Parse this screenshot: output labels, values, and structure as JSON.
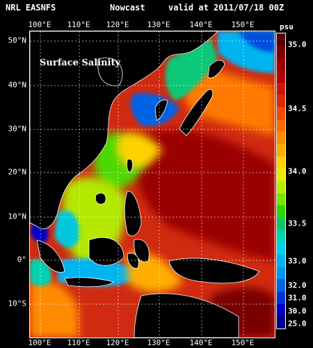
{
  "header": {
    "source": "NRL EASNFS",
    "product": "Nowcast",
    "valid": "valid at 2011/07/18 00Z"
  },
  "map": {
    "title": "Surface Salinity",
    "variable": "surface salinity",
    "lon_range": [
      100,
      157
    ],
    "lat_range": [
      -16,
      52
    ],
    "lon_labels": [
      "100°E",
      "110°E",
      "120°E",
      "130°E",
      "140°E",
      "150°E"
    ],
    "lat_labels": [
      "50°N",
      "40°N",
      "30°N",
      "20°N",
      "10°N",
      "0°",
      "10°S"
    ],
    "land_color": "#000000",
    "coast_color": "#ffffff"
  },
  "colorbar": {
    "unit": "psu",
    "labels": [
      "35.0",
      "34.5",
      "34.0",
      "33.5",
      "33.0",
      "32.0",
      "31.0",
      "30.0",
      "25.0"
    ],
    "colors": [
      "#5a0000",
      "#7a0000",
      "#960000",
      "#b40000",
      "#cc1400",
      "#e02800",
      "#f24a00",
      "#ff6a00",
      "#ff8c00",
      "#ffae00",
      "#ffd200",
      "#e8ec00",
      "#b4f000",
      "#78e600",
      "#2ed600",
      "#10c864",
      "#00d2b4",
      "#00d2e6",
      "#00b4f0",
      "#0096f0",
      "#0064e6",
      "#0032d2",
      "#0000c8",
      "#00008c"
    ]
  }
}
